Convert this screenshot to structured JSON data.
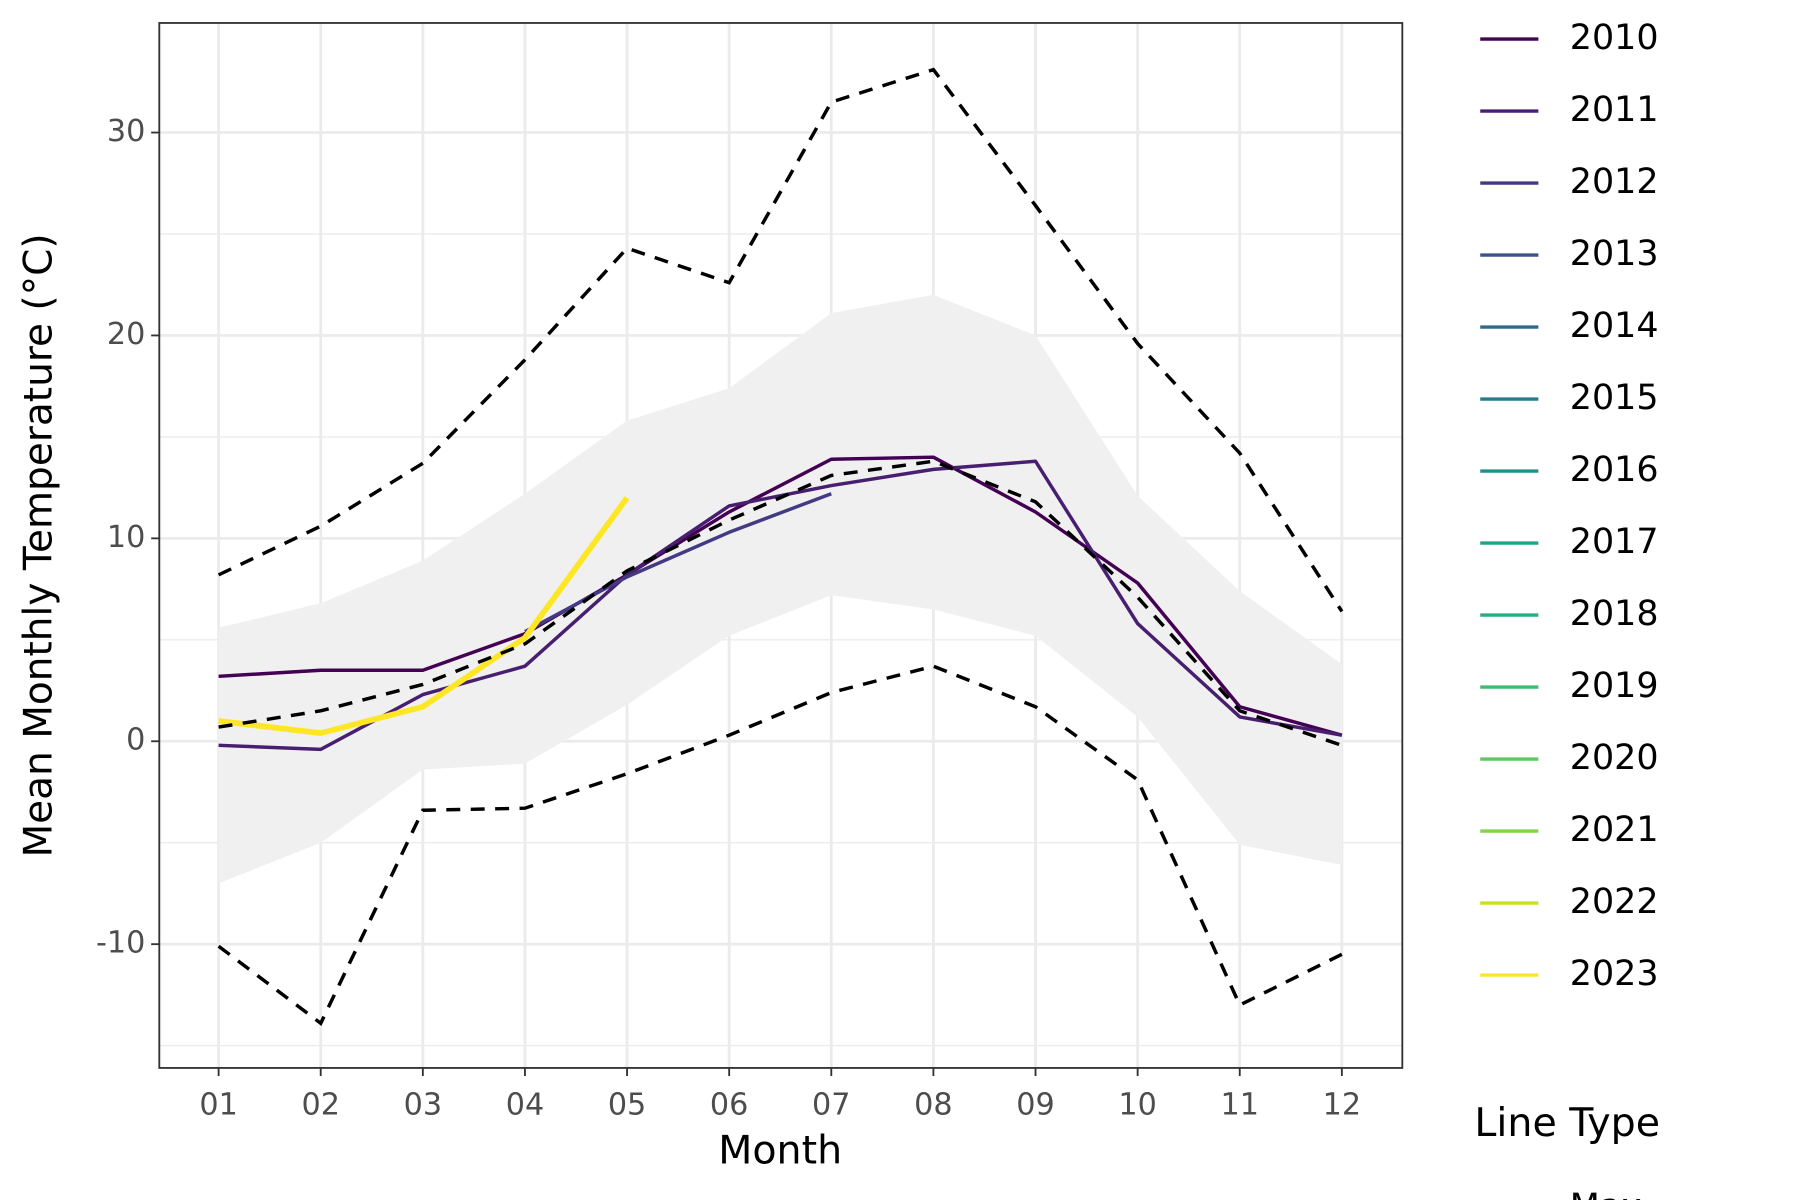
{
  "chart_data": {
    "type": "line",
    "x_label": "Month",
    "y_label": "Mean Monthly Temperature (°C)",
    "categories": [
      "01",
      "02",
      "03",
      "04",
      "05",
      "06",
      "07",
      "08",
      "09",
      "10",
      "11",
      "12"
    ],
    "ylim": [
      -16.1,
      35.4
    ],
    "yticks": [
      -10,
      0,
      10,
      20,
      30
    ],
    "minor_yticks": [
      -15,
      -5,
      5,
      15,
      25
    ],
    "grid": true,
    "band": {
      "color": "#f0f0f0",
      "upper": [
        5.6,
        6.8,
        8.9,
        12.2,
        15.8,
        17.4,
        21.1,
        22.0,
        20.0,
        12.1,
        7.4,
        3.8
      ],
      "lower": [
        -7.0,
        -5.0,
        -1.4,
        -1.1,
        1.8,
        5.2,
        7.2,
        6.5,
        5.2,
        1.2,
        -5.1,
        -6.1
      ]
    },
    "reference_lines": [
      {
        "name": "Max",
        "color": "#000000",
        "values": [
          8.2,
          10.6,
          13.7,
          18.8,
          24.3,
          22.6,
          31.5,
          33.1,
          26.4,
          19.6,
          14.2,
          6.4
        ]
      },
      {
        "color": "#000000",
        "values": [
          0.7,
          1.5,
          2.8,
          4.8,
          8.4,
          10.9,
          13.1,
          13.8,
          11.8,
          7.1,
          1.5,
          -0.2
        ]
      },
      {
        "color": "#000000",
        "values": [
          -10.1,
          -13.9,
          -3.4,
          -3.3,
          -1.6,
          0.3,
          2.4,
          3.7,
          1.7,
          -1.9,
          -13.0,
          -10.5
        ]
      }
    ],
    "line_type_title": "Line Type",
    "series": [
      {
        "name": "2010",
        "color": "#440154",
        "values": [
          3.2,
          3.5,
          3.5,
          5.3,
          8.2,
          11.3,
          13.9,
          14.0,
          11.3,
          7.8,
          1.7,
          0.3
        ]
      },
      {
        "name": "2011",
        "color": "#481f70",
        "values": [
          -0.2,
          -0.4,
          2.3,
          3.7,
          8.2,
          11.6,
          12.6,
          13.4,
          13.8,
          5.8,
          1.2,
          0.3
        ]
      },
      {
        "name": "2012",
        "color": "#443a83",
        "values": [
          null,
          null,
          null,
          5.4,
          8.1,
          10.3,
          12.2,
          null,
          null,
          null,
          null,
          null
        ]
      },
      {
        "name": "2013",
        "color": "#3b528b",
        "values": [
          null,
          null,
          null,
          null,
          null,
          null,
          null,
          null,
          null,
          null,
          null,
          null
        ]
      },
      {
        "name": "2014",
        "color": "#31688e",
        "values": [
          null,
          null,
          null,
          null,
          null,
          null,
          null,
          null,
          null,
          null,
          null,
          null
        ]
      },
      {
        "name": "2015",
        "color": "#287c8e",
        "values": [
          null,
          null,
          null,
          null,
          null,
          null,
          null,
          null,
          null,
          null,
          null,
          null
        ]
      },
      {
        "name": "2016",
        "color": "#21908c",
        "values": [
          null,
          null,
          null,
          null,
          null,
          null,
          null,
          null,
          null,
          null,
          null,
          null
        ]
      },
      {
        "name": "2017",
        "color": "#20a386",
        "values": [
          null,
          null,
          null,
          null,
          null,
          null,
          null,
          null,
          null,
          null,
          null,
          null
        ]
      },
      {
        "name": "2018",
        "color": "#28ae80",
        "values": [
          null,
          null,
          null,
          null,
          null,
          null,
          null,
          null,
          null,
          null,
          null,
          null
        ]
      },
      {
        "name": "2019",
        "color": "#3fbc73",
        "values": [
          null,
          null,
          null,
          null,
          null,
          null,
          null,
          null,
          null,
          null,
          null,
          null
        ]
      },
      {
        "name": "2020",
        "color": "#5ec962",
        "values": [
          null,
          null,
          null,
          null,
          null,
          null,
          null,
          null,
          null,
          null,
          null,
          null
        ]
      },
      {
        "name": "2021",
        "color": "#84d44b",
        "values": [
          null,
          null,
          null,
          null,
          null,
          null,
          null,
          null,
          null,
          null,
          null,
          null
        ]
      },
      {
        "name": "2022",
        "color": "#c8e020",
        "values": [
          null,
          null,
          null,
          null,
          null,
          null,
          null,
          null,
          null,
          null,
          null,
          null
        ]
      },
      {
        "name": "2023",
        "color": "#fde725",
        "width": 5,
        "values": [
          1.0,
          0.4,
          1.7,
          5.1,
          12.0,
          null,
          null,
          null,
          null,
          null,
          null,
          null
        ]
      }
    ]
  }
}
